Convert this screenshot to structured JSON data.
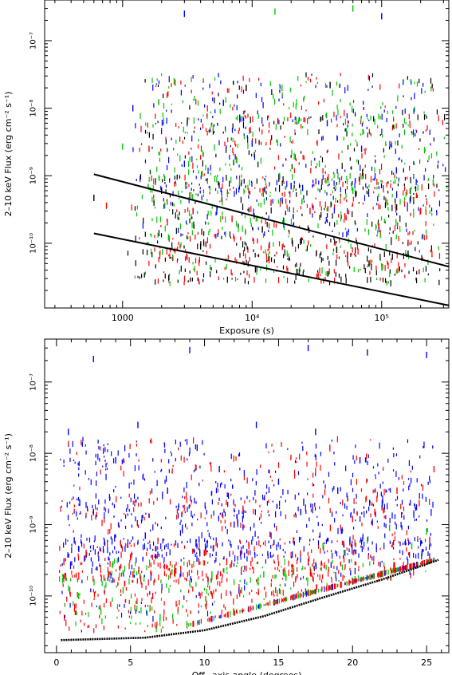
{
  "chart_data": [
    {
      "type": "scatter",
      "title": "",
      "xlabel": "Exposure (s)",
      "ylabel": "2–10 keV Flux (erg cm⁻² s⁻¹)",
      "xscale": "log",
      "yscale": "log",
      "xlim": [
        250,
        330000
      ],
      "ylim": [
        1.1e-11,
        4e-07
      ],
      "x_tick_labels": [
        {
          "value": 1000,
          "label": "1000"
        },
        {
          "value": 10000,
          "label": "10⁴"
        },
        {
          "value": 100000,
          "label": "10⁵"
        }
      ],
      "y_tick_labels": [
        {
          "value": 1e-10,
          "label": "10⁻¹⁰"
        },
        {
          "value": 1e-09,
          "label": "10⁻⁹"
        },
        {
          "value": 1e-08,
          "label": "10⁻⁸"
        },
        {
          "value": 1e-07,
          "label": "10⁻⁷"
        }
      ],
      "series_colors": [
        "#000000",
        "#ff0000",
        "#00c800",
        "#0000ff"
      ],
      "reference_lines": [
        {
          "x": [
            600,
            330000
          ],
          "y": [
            1.05e-09,
            4.5e-11
          ]
        },
        {
          "x": [
            600,
            330000
          ],
          "y": [
            1.4e-10,
            1.2e-11
          ]
        }
      ],
      "points": [
        [
          600,
          4.7e-10,
          0
        ],
        [
          750,
          3.6e-10,
          1
        ],
        [
          1000,
          2.7e-09,
          2
        ],
        [
          1200,
          1e-08,
          3
        ],
        [
          1600,
          2.5e-09,
          1
        ],
        [
          2000,
          6e-10,
          0
        ],
        [
          2500,
          2.5e-08,
          2
        ],
        [
          3000,
          1.5e-09,
          3
        ],
        [
          3500,
          3e-10,
          1
        ],
        [
          4000,
          9e-11,
          0
        ],
        [
          5000,
          5e-09,
          2
        ],
        [
          6000,
          1.2e-08,
          3
        ],
        [
          7000,
          2.3e-10,
          1
        ],
        [
          8000,
          8e-10,
          2
        ],
        [
          10000,
          3e-09,
          3
        ],
        [
          12000,
          1.6e-10,
          0
        ],
        [
          14000,
          4e-10,
          1
        ],
        [
          17000,
          2e-08,
          2
        ],
        [
          20000,
          7e-10,
          3
        ],
        [
          24000,
          1.1e-10,
          0
        ],
        [
          28000,
          3e-10,
          1
        ],
        [
          33000,
          1.5e-09,
          2
        ],
        [
          38000,
          6e-09,
          3
        ],
        [
          45000,
          8e-11,
          0
        ],
        [
          52000,
          2.5e-10,
          1
        ],
        [
          60000,
          6e-10,
          2
        ],
        [
          70000,
          2.5e-09,
          3
        ],
        [
          80000,
          5e-11,
          0
        ],
        [
          95000,
          1.8e-10,
          1
        ],
        [
          110000,
          4e-10,
          2
        ],
        [
          130000,
          1.2e-09,
          3
        ],
        [
          160000,
          7e-11,
          0
        ],
        [
          200000,
          3e-10,
          1
        ],
        [
          250000,
          8e-10,
          2
        ],
        [
          40000,
          2.2e-08,
          0
        ],
        [
          9000,
          2e-08,
          0
        ],
        [
          15000,
          2.7e-07,
          2
        ],
        [
          3000,
          2.5e-07,
          3
        ],
        [
          60000,
          3e-07,
          2
        ],
        [
          100000,
          2.3e-07,
          3
        ]
      ]
    },
    {
      "type": "scatter",
      "title": "",
      "xlabel": "Off−axis angle (degrees)",
      "ylabel": "2–10 keV Flux (erg cm⁻² s⁻¹)",
      "xscale": "linear",
      "yscale": "log",
      "xlim": [
        -0.8,
        26.5
      ],
      "ylim": [
        1.6e-11,
        4e-07
      ],
      "x_tick_labels": [
        {
          "value": 0,
          "label": "0"
        },
        {
          "value": 5,
          "label": "5"
        },
        {
          "value": 10,
          "label": "10"
        },
        {
          "value": 15,
          "label": "15"
        },
        {
          "value": 20,
          "label": "20"
        },
        {
          "value": 25,
          "label": "25"
        }
      ],
      "y_tick_labels": [
        {
          "value": 1e-10,
          "label": "10⁻¹⁰"
        },
        {
          "value": 1e-09,
          "label": "10⁻⁹"
        },
        {
          "value": 1e-08,
          "label": "10⁻⁸"
        },
        {
          "value": 1e-07,
          "label": "10⁻⁷"
        }
      ],
      "series_colors": [
        "#000000",
        "#ff0000",
        "#00c800",
        "#0000ff"
      ],
      "reference_lines": [
        {
          "x": [
            0.3,
            6,
            10,
            14,
            18,
            22,
            25.8
          ],
          "y": [
            2.4e-11,
            2.6e-11,
            3.3e-11,
            5.2e-11,
            9.5e-11,
            1.7e-10,
            3.2e-10
          ]
        }
      ],
      "points": [
        [
          0.5,
          3e-10,
          1
        ],
        [
          0.8,
          2e-08,
          3
        ],
        [
          1.2,
          6e-10,
          3
        ],
        [
          1.5,
          1e-10,
          2
        ],
        [
          2.0,
          4e-10,
          1
        ],
        [
          2.5,
          1.5e-09,
          3
        ],
        [
          3.0,
          6e-11,
          2
        ],
        [
          3.5,
          2e-10,
          1
        ],
        [
          4.0,
          8e-09,
          3
        ],
        [
          4.5,
          1.2e-10,
          2
        ],
        [
          5.0,
          3.5e-10,
          1
        ],
        [
          5.5,
          2.5e-08,
          3
        ],
        [
          6.0,
          7e-10,
          3
        ],
        [
          6.5,
          1e-10,
          1
        ],
        [
          7.0,
          5e-11,
          2
        ],
        [
          7.5,
          3e-09,
          3
        ],
        [
          8.0,
          2.5e-10,
          1
        ],
        [
          8.5,
          9e-10,
          3
        ],
        [
          9.0,
          1.5e-10,
          2
        ],
        [
          9.5,
          1.2e-08,
          3
        ],
        [
          10.0,
          4e-10,
          1
        ],
        [
          10.5,
          2e-10,
          2
        ],
        [
          11.0,
          6e-09,
          3
        ],
        [
          11.5,
          3e-10,
          1
        ],
        [
          12.0,
          1e-09,
          3
        ],
        [
          12.5,
          1.2e-10,
          2
        ],
        [
          13.0,
          5e-10,
          1
        ],
        [
          13.5,
          2.5e-08,
          3
        ],
        [
          14.0,
          2e-10,
          2
        ],
        [
          14.5,
          7e-10,
          1
        ],
        [
          15.0,
          4e-09,
          3
        ],
        [
          15.5,
          1.8e-10,
          2
        ],
        [
          16.0,
          6e-10,
          1
        ],
        [
          16.5,
          1.5e-09,
          3
        ],
        [
          17.0,
          3e-10,
          1
        ],
        [
          17.5,
          2e-08,
          3
        ],
        [
          18.0,
          5e-10,
          2
        ],
        [
          18.5,
          9e-10,
          1
        ],
        [
          19.0,
          3e-09,
          3
        ],
        [
          19.5,
          4e-10,
          2
        ],
        [
          20.0,
          1.2e-09,
          1
        ],
        [
          20.5,
          8e-09,
          3
        ],
        [
          21.0,
          6e-10,
          2
        ],
        [
          21.5,
          1.5e-09,
          1
        ],
        [
          22.0,
          2e-09,
          3
        ],
        [
          22.5,
          9e-10,
          2
        ],
        [
          23.0,
          3e-09,
          1
        ],
        [
          24.0,
          5e-10,
          2
        ],
        [
          24.5,
          2e-09,
          1
        ],
        [
          25.0,
          8e-10,
          2
        ],
        [
          25.5,
          6e-09,
          1
        ],
        [
          9.0,
          2.8e-07,
          3
        ],
        [
          17.0,
          3e-07,
          3
        ],
        [
          21.0,
          2.6e-07,
          3
        ],
        [
          25.0,
          2.4e-07,
          3
        ],
        [
          2.5,
          2.1e-07,
          3
        ]
      ]
    }
  ]
}
